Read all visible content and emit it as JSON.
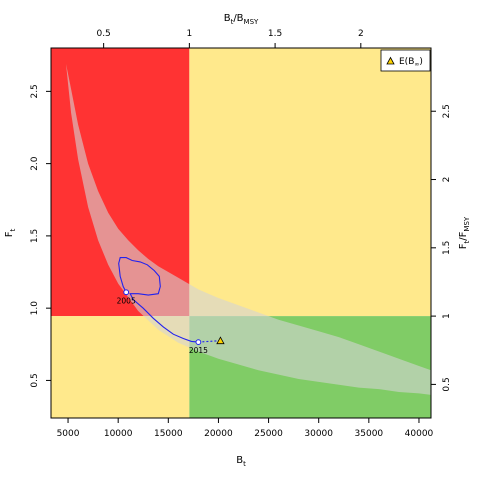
{
  "chart_data": {
    "type": "scatter",
    "title": "",
    "xlabel": "B",
    "xlabel_sub": "t",
    "ylabel": "F",
    "ylabel_sub": "t",
    "top_axis_label": {
      "main": "B",
      "sub1": "t",
      "sep": "/B",
      "sub2": "MSY"
    },
    "right_axis_label": {
      "main": "F",
      "sub1": "t",
      "sep": "/F",
      "sub2": "MSY"
    },
    "xlim": [
      3300,
      41200
    ],
    "ylim": [
      0.24,
      2.8
    ],
    "bmsy": 17100,
    "fmsy": 0.945,
    "x_ticks": [
      5000,
      10000,
      15000,
      20000,
      25000,
      30000,
      35000,
      40000
    ],
    "y_ticks": [
      0.5,
      1.0,
      1.5,
      2.0,
      2.5
    ],
    "top_ticks": [
      0.5,
      1,
      1.5,
      2
    ],
    "right_ticks": [
      0.5,
      1,
      1.5,
      2,
      2.5
    ],
    "quadrant_colors": {
      "top_left": "#ff3333",
      "top_right": "#ffe98c",
      "bottom_left": "#ffe98c",
      "bottom_right": "#80cc66"
    },
    "uncertainty_band": {
      "color": "#d3d3d3",
      "upper": [
        [
          4800,
          2.69
        ],
        [
          5200,
          2.55
        ],
        [
          6000,
          2.27
        ],
        [
          7000,
          2.0
        ],
        [
          8000,
          1.81
        ],
        [
          9000,
          1.66
        ],
        [
          10000,
          1.55
        ],
        [
          11000,
          1.47
        ],
        [
          12000,
          1.4
        ],
        [
          13000,
          1.34
        ],
        [
          14000,
          1.29
        ],
        [
          15000,
          1.25
        ],
        [
          16000,
          1.21
        ],
        [
          17000,
          1.17
        ],
        [
          18000,
          1.13
        ],
        [
          19000,
          1.1
        ],
        [
          20000,
          1.07
        ],
        [
          22000,
          1.02
        ],
        [
          24000,
          0.97
        ],
        [
          26000,
          0.92
        ],
        [
          28000,
          0.88
        ],
        [
          30000,
          0.84
        ],
        [
          32000,
          0.8
        ],
        [
          34000,
          0.75
        ],
        [
          36000,
          0.7
        ],
        [
          38000,
          0.65
        ],
        [
          40000,
          0.6
        ],
        [
          41200,
          0.57
        ]
      ],
      "lower": [
        [
          41200,
          0.4
        ],
        [
          40000,
          0.41
        ],
        [
          38000,
          0.42
        ],
        [
          36000,
          0.44
        ],
        [
          34000,
          0.45
        ],
        [
          32000,
          0.47
        ],
        [
          30000,
          0.49
        ],
        [
          28000,
          0.51
        ],
        [
          26000,
          0.54
        ],
        [
          24000,
          0.57
        ],
        [
          22000,
          0.61
        ],
        [
          20000,
          0.65
        ],
        [
          18000,
          0.7
        ],
        [
          16000,
          0.76
        ],
        [
          14000,
          0.85
        ],
        [
          12000,
          0.98
        ],
        [
          10000,
          1.17
        ],
        [
          9000,
          1.3
        ],
        [
          8000,
          1.47
        ],
        [
          7000,
          1.7
        ],
        [
          6000,
          2.03
        ],
        [
          5300,
          2.35
        ],
        [
          4800,
          2.69
        ]
      ]
    },
    "trajectory": {
      "color": "#2222ee",
      "points": [
        [
          10800,
          1.11
        ],
        [
          10500,
          1.15
        ],
        [
          10200,
          1.22
        ],
        [
          10050,
          1.31
        ],
        [
          10200,
          1.35
        ],
        [
          10800,
          1.35
        ],
        [
          11400,
          1.33
        ],
        [
          12200,
          1.32
        ],
        [
          12900,
          1.3
        ],
        [
          13600,
          1.26
        ],
        [
          14100,
          1.22
        ],
        [
          14200,
          1.15
        ],
        [
          14000,
          1.1
        ],
        [
          13000,
          1.09
        ],
        [
          12000,
          1.1
        ],
        [
          11200,
          1.1
        ],
        [
          11500,
          1.06
        ],
        [
          12500,
          1.0
        ],
        [
          13500,
          0.93
        ],
        [
          14500,
          0.87
        ],
        [
          15500,
          0.82
        ],
        [
          16500,
          0.79
        ],
        [
          17300,
          0.77
        ],
        [
          18000,
          0.765
        ]
      ]
    },
    "projection": {
      "points": [
        [
          18000,
          0.765
        ],
        [
          20200,
          0.775
        ]
      ],
      "color": "#2222ee"
    },
    "labeled_points": [
      {
        "x": 10800,
        "y": 1.11,
        "label": "2005"
      },
      {
        "x": 18000,
        "y": 0.765,
        "label": "2015"
      }
    ],
    "equilibrium_point": {
      "x": 20200,
      "y": 0.775,
      "color": "#ffd400"
    },
    "legend": {
      "position": "top-right",
      "entry": {
        "main": "E(B",
        "sub": "∞",
        "close": ")"
      }
    }
  }
}
